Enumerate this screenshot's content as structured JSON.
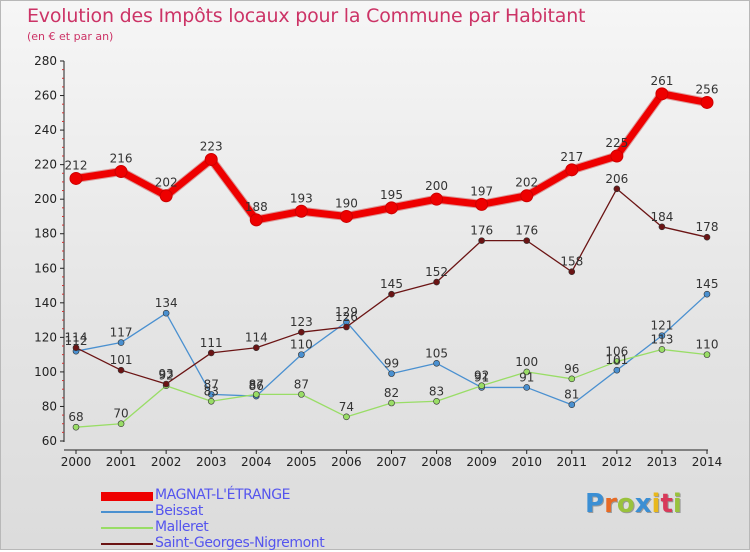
{
  "header": {
    "title": "Evolution des Impôts locaux pour la Commune par Habitant",
    "subtitle": "(en € et par an)"
  },
  "logo": {
    "text": "Proxiti",
    "colors": [
      "#3b8fd4",
      "#e86a24",
      "#9ac23c",
      "#3b8fd4",
      "#e8b81c",
      "#d83a5a",
      "#9ac23c"
    ]
  },
  "chart_data": {
    "type": "line",
    "x": [
      2000,
      2001,
      2002,
      2003,
      2004,
      2005,
      2006,
      2007,
      2008,
      2009,
      2010,
      2011,
      2012,
      2013,
      2014
    ],
    "ylim": [
      60,
      280
    ],
    "yticks": [
      60,
      80,
      100,
      120,
      140,
      160,
      180,
      200,
      220,
      240,
      260,
      280
    ],
    "grid": false,
    "legend_position": "bottom-left",
    "series": [
      {
        "name": "MAGNAT-L'ÉTRANGE",
        "color": "#ee0000",
        "width": 7,
        "values": [
          212,
          216,
          202,
          223,
          188,
          193,
          190,
          195,
          200,
          197,
          202,
          217,
          225,
          261,
          256
        ]
      },
      {
        "name": "Beissat",
        "color": "#4a90d0",
        "width": 1.3,
        "values": [
          112,
          117,
          134,
          87,
          86,
          110,
          129,
          99,
          105,
          91,
          91,
          81,
          101,
          121,
          145
        ]
      },
      {
        "name": "Malleret",
        "color": "#99dd66",
        "width": 1.3,
        "values": [
          68,
          70,
          92,
          83,
          87,
          87,
          74,
          82,
          83,
          92,
          100,
          96,
          106,
          113,
          110
        ]
      },
      {
        "name": "Saint-Georges-Nigremont",
        "color": "#6b1414",
        "width": 1.3,
        "values": [
          114,
          101,
          93,
          111,
          114,
          123,
          126,
          145,
          152,
          176,
          176,
          158,
          206,
          184,
          178
        ]
      }
    ]
  }
}
